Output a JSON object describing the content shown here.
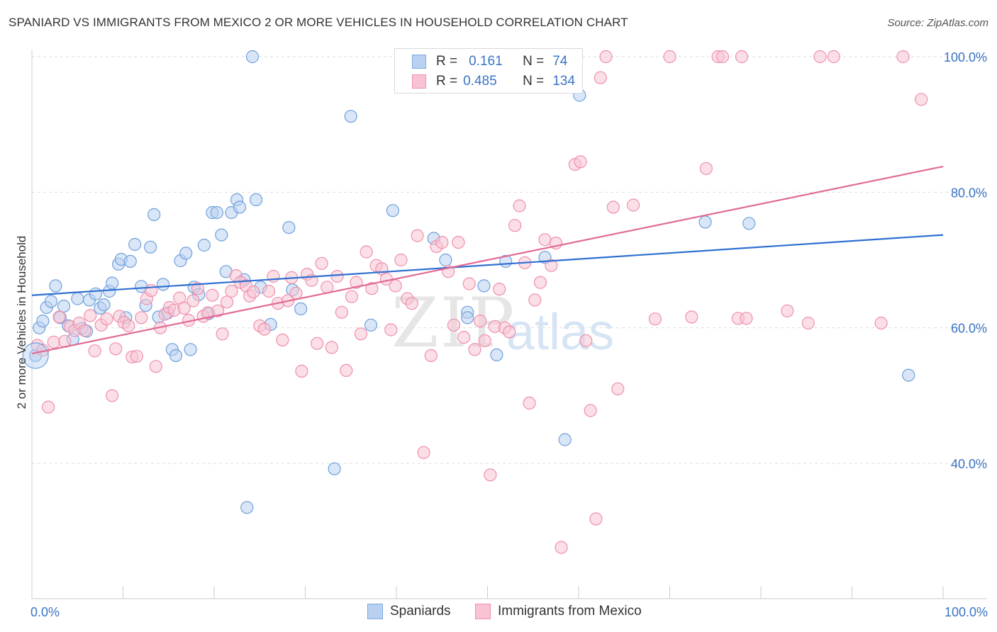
{
  "header": {
    "title": "SPANIARD VS IMMIGRANTS FROM MEXICO 2 OR MORE VEHICLES IN HOUSEHOLD CORRELATION CHART",
    "source": "Source: ZipAtlas.com"
  },
  "watermark": {
    "part1": "ZIP",
    "part2": "atlas"
  },
  "legend": {
    "rows": [
      {
        "r_label": "R =",
        "r_value": "0.161",
        "n_label": "N =",
        "n_value": "74",
        "color": "#7eaadf",
        "fill": "#b9d1f0"
      },
      {
        "r_label": "R =",
        "r_value": "0.485",
        "n_label": "N =",
        "n_value": "134",
        "color": "#ef8fad",
        "fill": "#f8c4d3"
      }
    ]
  },
  "bottom_legend": {
    "series1": "Spaniards",
    "series2": "Immigrants from Mexico"
  },
  "chart_data": {
    "type": "scatter",
    "title": "SPANIARD VS IMMIGRANTS FROM MEXICO 2 OR MORE VEHICLES IN HOUSEHOLD CORRELATION CHART",
    "xlabel": "",
    "ylabel": "2 or more Vehicles in Household",
    "xlim": [
      0,
      100
    ],
    "ylim": [
      22,
      101
    ],
    "x_tick_labels": [
      "0.0%",
      "100.0%"
    ],
    "y_ticks": [
      40,
      60,
      80,
      100
    ],
    "y_tick_labels": [
      "40.0%",
      "60.0%",
      "80.0%",
      "100.0%"
    ],
    "grid": true,
    "legend_position": "top-center",
    "series": [
      {
        "name": "Spaniards",
        "color": "#6fa0dc",
        "fill": "#b9d1f0",
        "trend": {
          "x": [
            0,
            100
          ],
          "y": [
            64.8,
            73.7
          ],
          "color": "#2e6fd1"
        },
        "points": [
          [
            0.4,
            55.9
          ],
          [
            0.8,
            60.0
          ],
          [
            1.2,
            61.0
          ],
          [
            1.6,
            63.0
          ],
          [
            2.1,
            63.9
          ],
          [
            2.6,
            66.2
          ],
          [
            3.1,
            61.5
          ],
          [
            3.5,
            63.2
          ],
          [
            4.0,
            60.3
          ],
          [
            4.5,
            58.3
          ],
          [
            5.0,
            64.3
          ],
          [
            5.5,
            59.9
          ],
          [
            6.0,
            59.5
          ],
          [
            6.3,
            64.1
          ],
          [
            7.0,
            65.0
          ],
          [
            7.5,
            62.9
          ],
          [
            7.9,
            63.4
          ],
          [
            8.5,
            65.4
          ],
          [
            8.8,
            66.6
          ],
          [
            9.5,
            69.4
          ],
          [
            9.8,
            70.1
          ],
          [
            10.3,
            61.5
          ],
          [
            10.8,
            69.8
          ],
          [
            11.3,
            72.3
          ],
          [
            12.0,
            66.1
          ],
          [
            12.5,
            63.3
          ],
          [
            13.0,
            71.9
          ],
          [
            13.4,
            76.7
          ],
          [
            13.9,
            61.6
          ],
          [
            14.4,
            66.4
          ],
          [
            14.9,
            62.2
          ],
          [
            15.4,
            56.8
          ],
          [
            15.8,
            55.9
          ],
          [
            16.3,
            69.9
          ],
          [
            16.9,
            71.0
          ],
          [
            17.4,
            56.8
          ],
          [
            17.8,
            66.0
          ],
          [
            18.3,
            64.9
          ],
          [
            18.9,
            72.2
          ],
          [
            19.4,
            62.1
          ],
          [
            19.8,
            77.0
          ],
          [
            20.3,
            77.0
          ],
          [
            20.8,
            73.7
          ],
          [
            21.3,
            68.3
          ],
          [
            21.9,
            77.0
          ],
          [
            22.5,
            78.9
          ],
          [
            22.8,
            77.8
          ],
          [
            23.3,
            67.1
          ],
          [
            23.6,
            33.5
          ],
          [
            24.2,
            100.0
          ],
          [
            24.6,
            78.9
          ],
          [
            25.1,
            66.0
          ],
          [
            26.2,
            60.5
          ],
          [
            28.2,
            74.8
          ],
          [
            28.6,
            65.6
          ],
          [
            29.5,
            62.8
          ],
          [
            33.2,
            39.2
          ],
          [
            35.0,
            91.2
          ],
          [
            37.2,
            60.4
          ],
          [
            39.6,
            77.3
          ],
          [
            44.1,
            73.2
          ],
          [
            45.4,
            70.0
          ],
          [
            47.8,
            62.3
          ],
          [
            47.8,
            61.5
          ],
          [
            49.6,
            66.2
          ],
          [
            51.0,
            56.0
          ],
          [
            51.5,
            100.0
          ],
          [
            52.0,
            69.8
          ],
          [
            56.3,
            70.4
          ],
          [
            58.5,
            43.5
          ],
          [
            60.1,
            94.3
          ],
          [
            73.9,
            75.6
          ],
          [
            78.7,
            75.4
          ],
          [
            96.2,
            53.0
          ]
        ]
      },
      {
        "name": "Immigrants from Mexico",
        "color": "#ef8fad",
        "fill": "#f8c4d3",
        "trend": {
          "x": [
            0,
            100
          ],
          "y": [
            56.2,
            83.8
          ],
          "color": "#e06b95"
        },
        "points": [
          [
            0.6,
            57.4
          ],
          [
            1.2,
            56.7
          ],
          [
            1.8,
            48.3
          ],
          [
            2.4,
            57.9
          ],
          [
            3.0,
            61.6
          ],
          [
            3.6,
            58.0
          ],
          [
            4.2,
            60.2
          ],
          [
            4.7,
            59.6
          ],
          [
            5.2,
            60.7
          ],
          [
            5.8,
            59.6
          ],
          [
            6.4,
            61.8
          ],
          [
            6.9,
            56.6
          ],
          [
            7.6,
            60.4
          ],
          [
            8.2,
            61.3
          ],
          [
            8.8,
            50.0
          ],
          [
            9.2,
            56.9
          ],
          [
            9.6,
            61.7
          ],
          [
            10.1,
            60.8
          ],
          [
            10.6,
            60.3
          ],
          [
            11.0,
            55.7
          ],
          [
            11.5,
            55.8
          ],
          [
            12.0,
            61.5
          ],
          [
            12.6,
            64.3
          ],
          [
            13.1,
            65.5
          ],
          [
            13.6,
            54.3
          ],
          [
            14.1,
            60.0
          ],
          [
            14.6,
            62.0
          ],
          [
            15.1,
            63.0
          ],
          [
            15.6,
            62.6
          ],
          [
            16.2,
            64.4
          ],
          [
            16.7,
            62.9
          ],
          [
            17.2,
            61.1
          ],
          [
            17.7,
            64.0
          ],
          [
            18.2,
            65.8
          ],
          [
            18.8,
            61.7
          ],
          [
            19.3,
            62.2
          ],
          [
            19.8,
            64.8
          ],
          [
            20.4,
            62.5
          ],
          [
            20.9,
            59.1
          ],
          [
            21.4,
            63.8
          ],
          [
            21.9,
            65.4
          ],
          [
            22.4,
            67.7
          ],
          [
            22.9,
            66.7
          ],
          [
            23.5,
            66.2
          ],
          [
            23.9,
            64.7
          ],
          [
            24.3,
            65.3
          ],
          [
            25.0,
            60.3
          ],
          [
            25.5,
            59.8
          ],
          [
            26.0,
            65.4
          ],
          [
            26.5,
            67.6
          ],
          [
            27.0,
            63.6
          ],
          [
            27.5,
            58.2
          ],
          [
            28.1,
            64.0
          ],
          [
            28.5,
            67.4
          ],
          [
            29.0,
            65.1
          ],
          [
            29.6,
            53.6
          ],
          [
            30.2,
            67.9
          ],
          [
            30.7,
            67.0
          ],
          [
            31.3,
            57.7
          ],
          [
            31.8,
            69.5
          ],
          [
            32.4,
            66.0
          ],
          [
            32.9,
            57.1
          ],
          [
            33.5,
            67.6
          ],
          [
            34.0,
            62.3
          ],
          [
            34.5,
            53.7
          ],
          [
            35.1,
            64.6
          ],
          [
            35.6,
            66.7
          ],
          [
            36.1,
            59.1
          ],
          [
            36.7,
            71.2
          ],
          [
            37.3,
            65.8
          ],
          [
            37.8,
            69.2
          ],
          [
            38.4,
            68.7
          ],
          [
            38.9,
            67.2
          ],
          [
            39.4,
            59.7
          ],
          [
            39.9,
            66.2
          ],
          [
            40.5,
            70.0
          ],
          [
            41.2,
            64.3
          ],
          [
            41.7,
            63.6
          ],
          [
            42.3,
            73.6
          ],
          [
            43.0,
            41.6
          ],
          [
            43.8,
            55.9
          ],
          [
            44.4,
            72.0
          ],
          [
            45.0,
            72.6
          ],
          [
            45.7,
            68.3
          ],
          [
            46.3,
            60.4
          ],
          [
            46.8,
            72.6
          ],
          [
            47.4,
            58.6
          ],
          [
            48.0,
            66.5
          ],
          [
            48.6,
            56.8
          ],
          [
            49.2,
            61.0
          ],
          [
            49.7,
            58.1
          ],
          [
            50.3,
            38.3
          ],
          [
            50.8,
            60.2
          ],
          [
            51.3,
            65.7
          ],
          [
            51.9,
            60.0
          ],
          [
            52.4,
            59.4
          ],
          [
            53.0,
            75.1
          ],
          [
            53.5,
            78.0
          ],
          [
            54.1,
            69.6
          ],
          [
            54.6,
            48.9
          ],
          [
            55.2,
            64.1
          ],
          [
            55.8,
            66.7
          ],
          [
            56.3,
            73.0
          ],
          [
            57.0,
            69.2
          ],
          [
            57.5,
            72.5
          ],
          [
            58.1,
            27.6
          ],
          [
            59.6,
            84.1
          ],
          [
            60.2,
            84.5
          ],
          [
            60.8,
            58.1
          ],
          [
            61.3,
            47.8
          ],
          [
            61.9,
            31.8
          ],
          [
            62.4,
            96.9
          ],
          [
            63.0,
            100.0
          ],
          [
            63.8,
            77.8
          ],
          [
            64.3,
            51.0
          ],
          [
            66.0,
            78.1
          ],
          [
            68.4,
            61.3
          ],
          [
            70.0,
            100.0
          ],
          [
            72.4,
            61.6
          ],
          [
            74.0,
            83.5
          ],
          [
            75.3,
            100.0
          ],
          [
            75.8,
            100.0
          ],
          [
            77.5,
            61.4
          ],
          [
            77.9,
            100.0
          ],
          [
            78.4,
            61.4
          ],
          [
            82.9,
            62.5
          ],
          [
            85.2,
            60.7
          ],
          [
            86.5,
            100.0
          ],
          [
            88.0,
            100.0
          ],
          [
            93.2,
            60.7
          ],
          [
            95.6,
            100.0
          ],
          [
            97.6,
            93.7
          ]
        ]
      }
    ]
  }
}
